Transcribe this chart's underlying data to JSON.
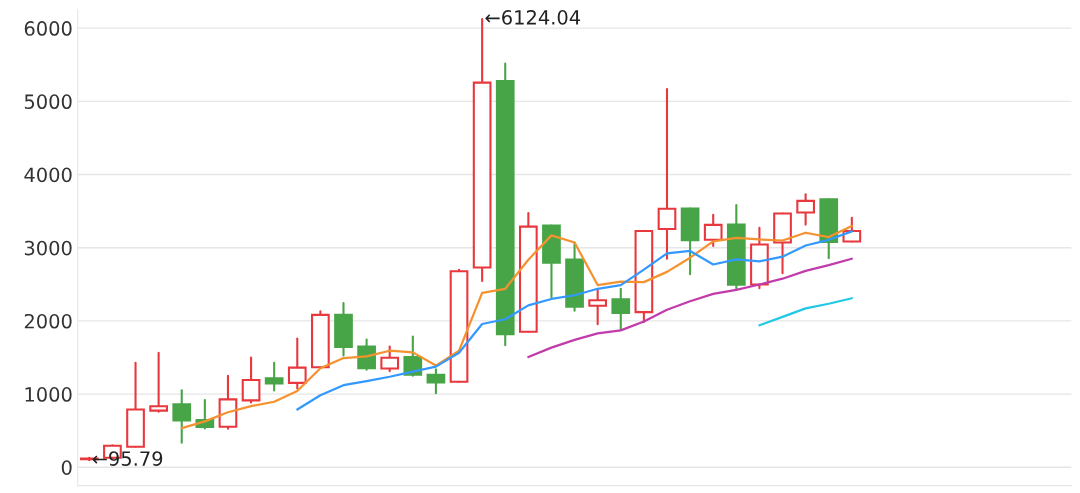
{
  "chart_data": {
    "type": "candlestick",
    "categories": [
      null,
      null,
      null,
      null,
      null,
      null,
      null,
      null,
      null,
      null,
      null,
      null,
      null,
      null,
      null,
      null,
      null,
      null,
      null,
      null,
      null,
      null,
      null,
      null,
      null,
      null,
      null,
      null,
      null,
      null,
      null,
      null,
      null,
      null,
      null,
      null,
      null,
      null,
      null,
      null,
      null,
      null,
      null
    ],
    "ohlc": [
      [
        110,
        130,
        95.79,
        120
      ],
      [
        130,
        300,
        120,
        295
      ],
      [
        280,
        1427,
        280,
        790
      ],
      [
        775,
        1565,
        760,
        835
      ],
      [
        860,
        1053,
        337,
        640
      ],
      [
        647,
        920,
        530,
        550
      ],
      [
        554,
        1251,
        527,
        928
      ],
      [
        914,
        1501,
        887,
        1192
      ],
      [
        1215,
        1427,
        1049,
        1146
      ],
      [
        1154,
        1760,
        1077,
        1362
      ],
      [
        1368,
        2130,
        1368,
        2083
      ],
      [
        2083,
        2245,
        1528,
        1645
      ],
      [
        1649,
        1746,
        1334,
        1354
      ],
      [
        1349,
        1649,
        1312,
        1496
      ],
      [
        1506,
        1787,
        1250,
        1265
      ],
      [
        1265,
        1340,
        1011,
        1160
      ],
      [
        1168,
        2698,
        1168,
        2678
      ],
      [
        2730,
        6124.04,
        2545,
        5256
      ],
      [
        5279,
        5515,
        1667,
        1819
      ],
      [
        1852,
        3473,
        1852,
        3288
      ],
      [
        3302,
        3302,
        2324,
        2795
      ],
      [
        2840,
        3072,
        2138,
        2194
      ],
      [
        2207,
        2429,
        1954,
        2282
      ],
      [
        2296,
        2439,
        1875,
        2110
      ],
      [
        2120,
        3228,
        1986,
        3228
      ],
      [
        3256,
        5168,
        2850,
        3533
      ],
      [
        3537,
        3537,
        2637,
        3104
      ],
      [
        3108,
        3450,
        3025,
        3312
      ],
      [
        3316,
        3584,
        2439,
        2494
      ],
      [
        2498,
        3274,
        2448,
        3044
      ],
      [
        3072,
        3468,
        2651,
        3468
      ],
      [
        3482,
        3731,
        3316,
        3640
      ],
      [
        3662,
        3662,
        2858,
        3080
      ],
      [
        3086,
        3409,
        3086,
        3228
      ],
      null,
      null,
      null,
      null,
      null,
      null,
      null,
      null,
      null
    ],
    "colors": [
      "#e8373d",
      "#e8373d",
      "#e8373d",
      "#e8373d",
      "#47a447",
      "#47a447",
      "#e8373d",
      "#e8373d",
      "#47a447",
      "#e8373d",
      "#e8373d",
      "#47a447",
      "#47a447",
      "#e8373d",
      "#47a447",
      "#47a447",
      "#e8373d",
      "#e8373d",
      "#47a447",
      "#e8373d",
      "#47a447",
      "#47a447",
      "#e8373d",
      "#47a447",
      "#e8373d",
      "#e8373d",
      "#47a447",
      "#e8373d",
      "#47a447",
      "#e8373d",
      "#e8373d",
      "#e8373d",
      "#47a447",
      "#e8373d",
      null,
      null,
      null,
      null,
      null,
      null,
      null,
      null,
      null
    ],
    "series": [
      {
        "type": "line",
        "color": "#f5922f",
        "values": [
          null,
          null,
          null,
          null,
          536,
          628,
          752,
          835,
          896,
          1043,
          1354,
          1492,
          1515,
          1593,
          1570,
          1390,
          1593,
          2383,
          2439,
          2836,
          3169,
          3072,
          2490,
          2536,
          2530,
          2670,
          2864,
          3086,
          3136,
          3113,
          3099,
          3205,
          3145,
          3298,
          null,
          null,
          null,
          null,
          null,
          null,
          null,
          null,
          null
        ]
      },
      {
        "type": "line",
        "color": "#3399ff",
        "values": [
          null,
          null,
          null,
          null,
          null,
          null,
          null,
          null,
          null,
          790,
          984,
          1122,
          1178,
          1237,
          1307,
          1376,
          1566,
          1958,
          2023,
          2213,
          2300,
          2351,
          2439,
          2490,
          2700,
          2924,
          2956,
          2771,
          2840,
          2813,
          2878,
          3030,
          3108,
          3224,
          null,
          null,
          null,
          null,
          null,
          null,
          null,
          null,
          null
        ]
      },
      {
        "type": "line",
        "color": "#c23bab",
        "values": [
          null,
          null,
          null,
          null,
          null,
          null,
          null,
          null,
          null,
          null,
          null,
          null,
          null,
          null,
          null,
          null,
          null,
          null,
          null,
          1506,
          1635,
          1741,
          1829,
          1871,
          1991,
          2152,
          2268,
          2369,
          2425,
          2498,
          2577,
          2684,
          2762,
          2850,
          null,
          null,
          null,
          null,
          null,
          null,
          null,
          null,
          null
        ]
      },
      {
        "type": "line",
        "color": "#22c8e6",
        "values": [
          null,
          null,
          null,
          null,
          null,
          null,
          null,
          null,
          null,
          null,
          null,
          null,
          null,
          null,
          null,
          null,
          null,
          null,
          null,
          null,
          null,
          null,
          null,
          null,
          null,
          null,
          null,
          null,
          null,
          1940,
          2055,
          2171,
          2235,
          2310,
          null,
          null,
          null,
          null,
          null,
          null,
          null,
          null,
          null
        ]
      }
    ],
    "ylim": [
      -250,
      6250
    ],
    "yticks": [
      0,
      1000,
      2000,
      3000,
      4000,
      5000,
      6000
    ],
    "grid": "y",
    "tick_labels": "y",
    "annotations": [
      "←6124.04",
      "←95.79"
    ]
  }
}
